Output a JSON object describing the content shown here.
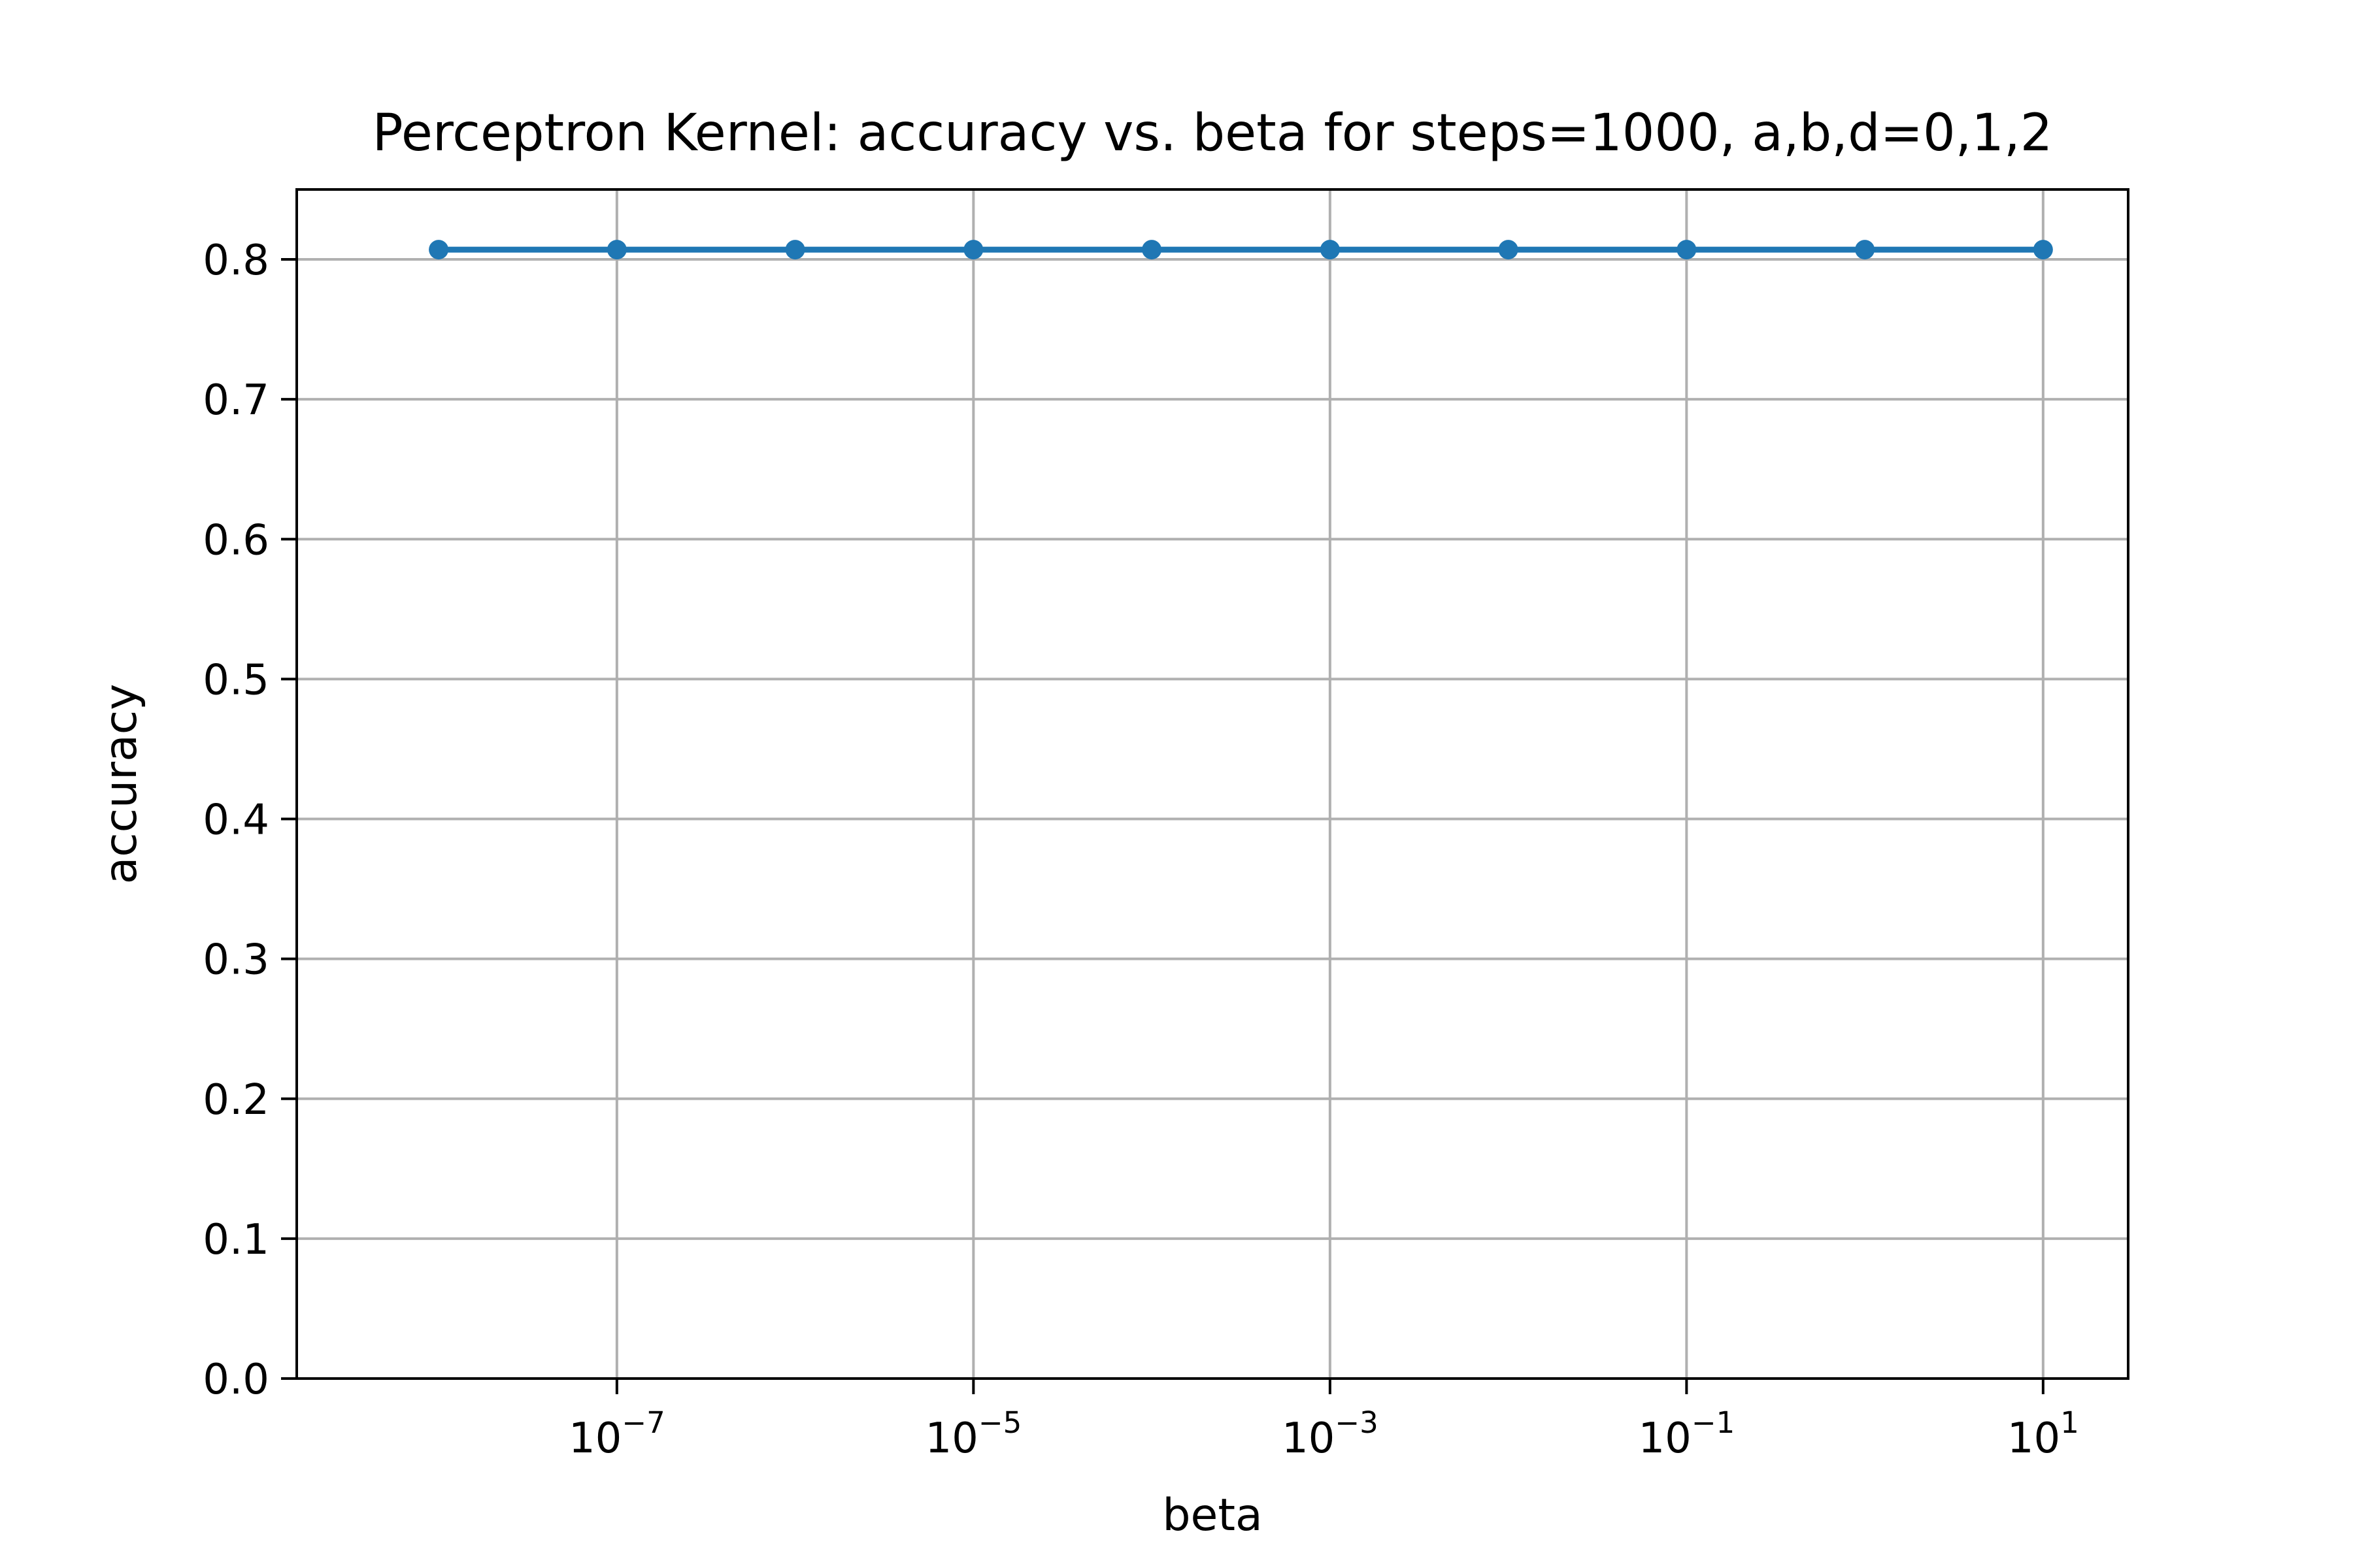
{
  "chart_data": {
    "type": "line",
    "title": "Perceptron Kernel: accuracy vs. beta for steps=1000, a,b,d=0,1,2",
    "xlabel": "beta",
    "ylabel": "accuracy",
    "xscale": "log",
    "xlim": [
      1.6e-09,
      30
    ],
    "ylim": [
      0.0,
      0.85
    ],
    "grid": true,
    "x_ticks": [
      {
        "base": "10",
        "exp": "−7",
        "value": 1e-07
      },
      {
        "base": "10",
        "exp": "−5",
        "value": 1e-05
      },
      {
        "base": "10",
        "exp": "−3",
        "value": 0.001
      },
      {
        "base": "10",
        "exp": "−1",
        "value": 0.1
      },
      {
        "base": "10",
        "exp": "1",
        "value": 10
      }
    ],
    "y_ticks": [
      {
        "label": "0.0",
        "value": 0.0
      },
      {
        "label": "0.1",
        "value": 0.1
      },
      {
        "label": "0.2",
        "value": 0.2
      },
      {
        "label": "0.3",
        "value": 0.3
      },
      {
        "label": "0.4",
        "value": 0.4
      },
      {
        "label": "0.5",
        "value": 0.5
      },
      {
        "label": "0.6",
        "value": 0.6
      },
      {
        "label": "0.7",
        "value": 0.7
      },
      {
        "label": "0.8",
        "value": 0.8
      }
    ],
    "series": [
      {
        "color": "#1f77b4",
        "x": [
          1e-08,
          1e-07,
          1e-06,
          1e-05,
          0.0001,
          0.001,
          0.01,
          0.1,
          1,
          10
        ],
        "y": [
          0.807,
          0.807,
          0.807,
          0.807,
          0.807,
          0.807,
          0.807,
          0.807,
          0.807,
          0.807
        ]
      }
    ]
  }
}
